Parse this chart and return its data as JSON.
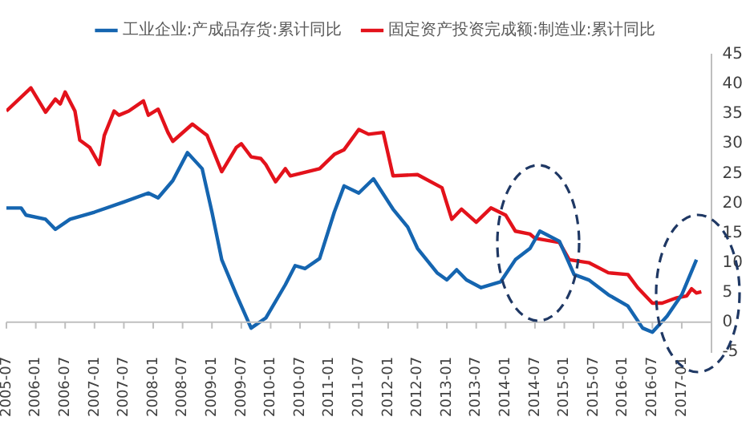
{
  "chart_data": {
    "type": "line",
    "legend": "top",
    "xlim": [
      "2005-07",
      "2017-07"
    ],
    "xticks": [
      "2005-07",
      "2006-01",
      "2006-07",
      "2007-01",
      "2007-07",
      "2008-01",
      "2008-07",
      "2009-01",
      "2009-07",
      "2010-01",
      "2010-07",
      "2011-01",
      "2011-07",
      "2012-01",
      "2012-07",
      "2013-01",
      "2013-07",
      "2014-01",
      "2014-07",
      "2015-01",
      "2015-07",
      "2016-01",
      "2016-07",
      "2017-01"
    ],
    "ylim": [
      -5,
      45
    ],
    "yticks": [
      -5,
      0,
      5,
      10,
      15,
      20,
      25,
      30,
      35,
      40,
      45
    ],
    "series": [
      {
        "name": "工业企业:产成品存货:累计同比",
        "color": "#1565b0",
        "x": [
          "2005-07",
          "2005-10",
          "2005-11",
          "2006-03",
          "2006-05",
          "2006-08",
          "2007-01",
          "2007-07",
          "2007-12",
          "2008-02",
          "2008-05",
          "2008-08",
          "2008-11",
          "2009-01",
          "2009-03",
          "2009-06",
          "2009-09",
          "2009-12",
          "2010-04",
          "2010-06",
          "2010-08",
          "2010-11",
          "2011-02",
          "2011-04",
          "2011-07",
          "2011-10",
          "2012-02",
          "2012-05",
          "2012-07",
          "2012-11",
          "2013-01",
          "2013-03",
          "2013-05",
          "2013-08",
          "2013-12",
          "2014-03",
          "2014-06",
          "2014-08",
          "2014-12",
          "2015-03",
          "2015-06",
          "2015-10",
          "2016-02",
          "2016-05",
          "2016-07",
          "2016-10",
          "2017-01",
          "2017-04"
        ],
        "values": [
          19.2,
          19.2,
          18,
          17.3,
          15.6,
          17.3,
          18.5,
          20.2,
          21.7,
          20.9,
          23.8,
          28.5,
          25.8,
          18.5,
          10.5,
          4.6,
          -1,
          0.7,
          6.3,
          9.5,
          9,
          10.7,
          18.5,
          22.9,
          21.7,
          24.1,
          19,
          16,
          12.4,
          8.3,
          7.1,
          8.8,
          7.1,
          5.8,
          6.8,
          10.5,
          12.4,
          15.3,
          13.6,
          8,
          7.1,
          4.6,
          2.7,
          -1,
          -1.7,
          1,
          4.6,
          10.5
        ]
      },
      {
        "name": "固定资产投资完成额:制造业:累计同比",
        "color": "#e3121b",
        "x": [
          "2005-07",
          "2005-12",
          "2006-03",
          "2006-05",
          "2006-06",
          "2006-07",
          "2006-09",
          "2006-10",
          "2006-12",
          "2007-02",
          "2007-03",
          "2007-05",
          "2007-06",
          "2007-08",
          "2007-11",
          "2007-12",
          "2008-02",
          "2008-04",
          "2008-05",
          "2008-09",
          "2008-12",
          "2009-03",
          "2009-06",
          "2009-07",
          "2009-09",
          "2009-11",
          "2009-12",
          "2010-02",
          "2010-04",
          "2010-05",
          "2010-07",
          "2010-11",
          "2011-02",
          "2011-04",
          "2011-07",
          "2011-09",
          "2011-12",
          "2012-02",
          "2012-07",
          "2012-12",
          "2013-02",
          "2013-04",
          "2013-07",
          "2013-10",
          "2014-01",
          "2014-03",
          "2014-06",
          "2014-07",
          "2014-12",
          "2015-02",
          "2015-06",
          "2015-10",
          "2016-02",
          "2016-04",
          "2016-07",
          "2016-09",
          "2016-12",
          "2017-02",
          "2017-03",
          "2017-04",
          "2017-05"
        ],
        "values": [
          35.5,
          39.4,
          35.3,
          37.5,
          36.7,
          38.7,
          35.5,
          30.6,
          29.4,
          26.5,
          31.4,
          35.5,
          34.8,
          35.5,
          37.2,
          34.8,
          35.8,
          31.9,
          30.4,
          33.3,
          31.4,
          25.3,
          29.4,
          30,
          27.8,
          27.5,
          26.5,
          23.6,
          25.8,
          24.6,
          25,
          25.8,
          28.2,
          29,
          32.4,
          31.6,
          31.9,
          24.6,
          24.8,
          22.6,
          17.3,
          19,
          16.8,
          19.2,
          18,
          15.3,
          14.8,
          14.1,
          13.4,
          10.5,
          10,
          8.3,
          8,
          5.8,
          3.2,
          3.2,
          4.1,
          4.4,
          5.6,
          4.9,
          5.1
        ]
      }
    ]
  }
}
